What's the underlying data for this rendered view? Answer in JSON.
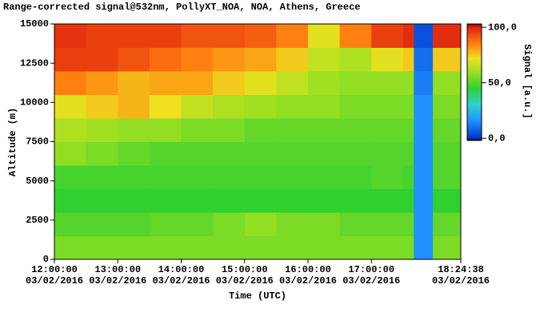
{
  "chart_data": {
    "type": "heatmap",
    "title": "Range-corrected signal@532nm, PollyXT_NOA, NOA, Athens, Greece",
    "x_label": "Time (UTC)",
    "y_label": "Altitude (m)",
    "colorbar_label": "Signal [a.u.]",
    "x": [
      12,
      12.5,
      13,
      13.5,
      14,
      14.5,
      15,
      15.5,
      16,
      16.5,
      17,
      17.5,
      17.67,
      17.97,
      18.41056
    ],
    "y": [
      0,
      1500,
      3000,
      4500,
      6000,
      7500,
      9000,
      10500,
      12000,
      13500,
      15000
    ],
    "z": [
      [
        55,
        55,
        55,
        55,
        55,
        55,
        55,
        55,
        55,
        55,
        55,
        55,
        15,
        55,
        null
      ],
      [
        50,
        50,
        50,
        52,
        52,
        55,
        58,
        55,
        55,
        52,
        52,
        52,
        15,
        52,
        null
      ],
      [
        45,
        45,
        45,
        45,
        45,
        45,
        45,
        45,
        45,
        45,
        45,
        45,
        15,
        45,
        null
      ],
      [
        48,
        48,
        48,
        48,
        48,
        48,
        48,
        48,
        48,
        48,
        50,
        48,
        15,
        50,
        null
      ],
      [
        58,
        55,
        52,
        50,
        50,
        50,
        50,
        50,
        50,
        50,
        50,
        50,
        15,
        50,
        null
      ],
      [
        62,
        60,
        58,
        58,
        55,
        55,
        52,
        52,
        52,
        52,
        52,
        52,
        15,
        52,
        null
      ],
      [
        70,
        75,
        78,
        72,
        65,
        62,
        60,
        58,
        58,
        55,
        55,
        55,
        15,
        55,
        null
      ],
      [
        85,
        82,
        78,
        80,
        80,
        75,
        70,
        65,
        60,
        58,
        58,
        58,
        12,
        58,
        null
      ],
      [
        95,
        95,
        92,
        88,
        85,
        82,
        80,
        75,
        65,
        62,
        70,
        75,
        10,
        75,
        null
      ],
      [
        97,
        95,
        95,
        95,
        92,
        92,
        90,
        85,
        70,
        85,
        95,
        98,
        5,
        98,
        null
      ]
    ],
    "xlim": [
      12,
      18.41056
    ],
    "ylim": [
      0,
      15000
    ],
    "xticks": [
      {
        "value": 12,
        "label": "12:00:00\n03/02/2016"
      },
      {
        "value": 13,
        "label": "13:00:00\n03/02/2016"
      },
      {
        "value": 14,
        "label": "14:00:00\n03/02/2016"
      },
      {
        "value": 15,
        "label": "15:00:00\n03/02/2016"
      },
      {
        "value": 16,
        "label": "16:00:00\n03/02/2016"
      },
      {
        "value": 17,
        "label": "17:00:00\n03/02/2016"
      },
      {
        "value": 18.41056,
        "label": "18:24:38\n03/02/2016"
      }
    ],
    "yticks": [
      0,
      2500,
      5000,
      7500,
      10000,
      12500,
      15000
    ],
    "zlim": [
      -2,
      103
    ],
    "zticks": [
      {
        "value": 0,
        "label": "0,0"
      },
      {
        "value": 50,
        "label": "50,0"
      },
      {
        "value": 100,
        "label": "100,0"
      }
    ],
    "colormap": [
      [
        -2,
        "#000000"
      ],
      [
        0,
        "#0033cc"
      ],
      [
        15,
        "#1e90ff"
      ],
      [
        30,
        "#30d0d0"
      ],
      [
        45,
        "#30d030"
      ],
      [
        60,
        "#a0e020"
      ],
      [
        72,
        "#f0e020"
      ],
      [
        85,
        "#ff8010"
      ],
      [
        100,
        "#e02010"
      ],
      [
        103,
        "#700000"
      ]
    ],
    "missing_color": "#000000"
  }
}
